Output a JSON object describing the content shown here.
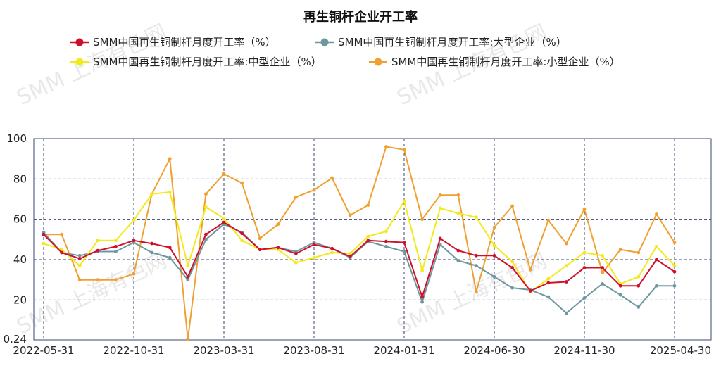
{
  "chart_data": {
    "type": "line",
    "title": "再生铜杆企业开工率",
    "watermark": "SMM 上海有色网",
    "ylim": [
      0.24,
      100
    ],
    "yticks": [
      100,
      80,
      60,
      40,
      20
    ],
    "ymin_label": "0.24",
    "grid": true,
    "legend_position": "top",
    "xtick_labels": [
      "2022-05-31",
      "2022-10-31",
      "2023-03-31",
      "2023-08-31",
      "2024-01-31",
      "2024-06-30",
      "2024-11-30",
      "2025-04-30"
    ],
    "x": [
      "2022-05",
      "2022-06",
      "2022-07",
      "2022-08",
      "2022-09",
      "2022-10",
      "2022-11",
      "2022-12",
      "2023-01",
      "2023-02",
      "2023-03",
      "2023-04",
      "2023-05",
      "2023-06",
      "2023-07",
      "2023-08",
      "2023-09",
      "2023-10",
      "2023-11",
      "2023-12",
      "2024-01",
      "2024-02",
      "2024-03",
      "2024-04",
      "2024-05",
      "2024-06",
      "2024-07",
      "2024-08",
      "2024-09",
      "2024-10",
      "2024-11",
      "2024-12",
      "2025-01",
      "2025-02",
      "2025-03",
      "2025-04"
    ],
    "series": [
      {
        "name": "SMM中国再生铜制杆月度开工率（%）",
        "color": "#d0102a",
        "values": [
          52.5,
          43.5,
          40.5,
          44.5,
          46.5,
          49.5,
          48,
          46,
          31.5,
          52.5,
          58.5,
          53,
          45,
          46,
          43,
          47.5,
          45.5,
          41.5,
          49.5,
          49,
          48.5,
          21.5,
          50.5,
          44.5,
          42,
          42,
          36,
          24.5,
          28.5,
          29,
          36,
          36,
          27,
          27,
          40,
          34
        ]
      },
      {
        "name": "SMM中国再生铜制杆月度开工率:大型企业（%）",
        "color": "#6e98a0",
        "values": [
          53.5,
          43.5,
          42,
          44,
          44,
          48.5,
          43.5,
          41,
          30,
          50,
          57.5,
          53.5,
          45,
          46,
          44,
          48.5,
          45.5,
          41,
          49,
          46.5,
          44,
          19,
          47.5,
          39.5,
          37,
          31.5,
          26,
          25,
          21.5,
          13.5,
          21,
          28,
          22.5,
          16.5,
          27,
          27
        ]
      },
      {
        "name": "SMM中国再生铜制杆月度开工率:中型企业（%）",
        "color": "#f2ea1c",
        "values": [
          48,
          45,
          37,
          49.5,
          49.5,
          59.5,
          72.5,
          73.5,
          37,
          66,
          60.5,
          49.5,
          45,
          45,
          38.5,
          41,
          43.5,
          43,
          51.5,
          54,
          69,
          34.5,
          65.5,
          63,
          61,
          47,
          39,
          24,
          30.5,
          37,
          43.5,
          42,
          28,
          31.5,
          46.5,
          37
        ]
      },
      {
        "name": "SMM中国再生铜制杆月度开工率:小型企业（%）",
        "color": "#f0a030",
        "values": [
          52.5,
          52.5,
          30,
          30,
          30,
          33,
          72.5,
          90,
          0.5,
          72.5,
          82.5,
          78,
          50.5,
          57.5,
          71,
          74.5,
          80.5,
          62,
          67,
          96,
          94.5,
          60,
          72,
          72,
          24,
          56,
          66.5,
          35,
          59.5,
          48,
          65,
          33.5,
          45,
          43.5,
          62.5,
          48.5
        ]
      }
    ]
  }
}
